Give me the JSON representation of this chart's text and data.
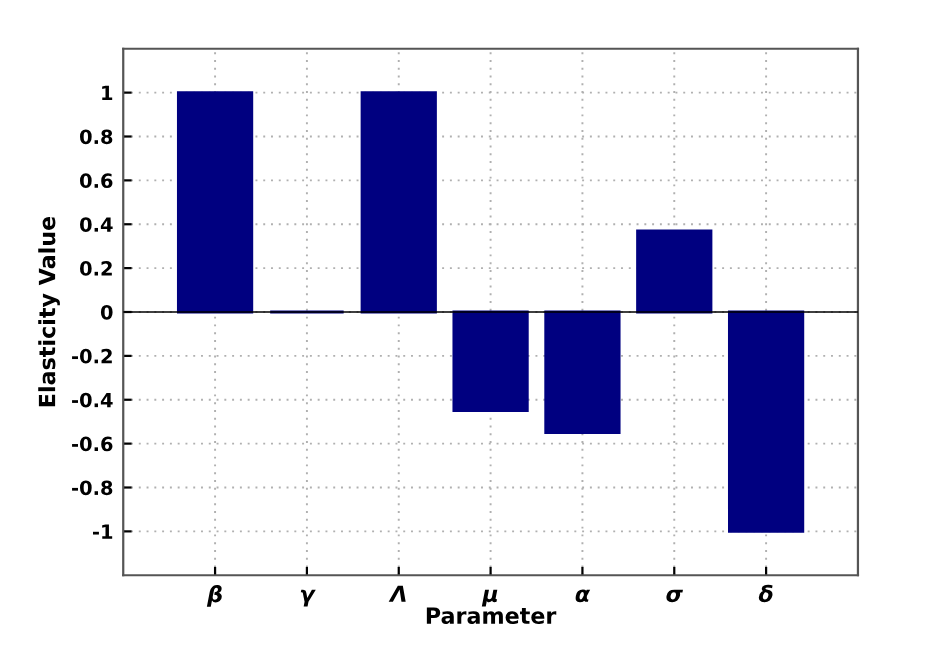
{
  "chart_data": {
    "type": "bar",
    "xlabel": "Parameter",
    "ylabel": "Elasticity Value",
    "categories": [
      "β",
      "γ",
      "Λ",
      "μ",
      "α",
      "σ",
      "δ"
    ],
    "values": [
      1,
      0,
      1,
      -0.45,
      -0.55,
      0.37,
      -1
    ],
    "color": "#000080",
    "ylim": [
      -1.2,
      1.2
    ],
    "yticks": [
      -1,
      -0.8,
      -0.6,
      -0.4,
      -0.2,
      0,
      0.2,
      0.4,
      0.6,
      0.8,
      1
    ],
    "grid": true,
    "ref_lines": [
      {
        "axis": "y",
        "value": 0,
        "color": "#000000"
      }
    ]
  }
}
